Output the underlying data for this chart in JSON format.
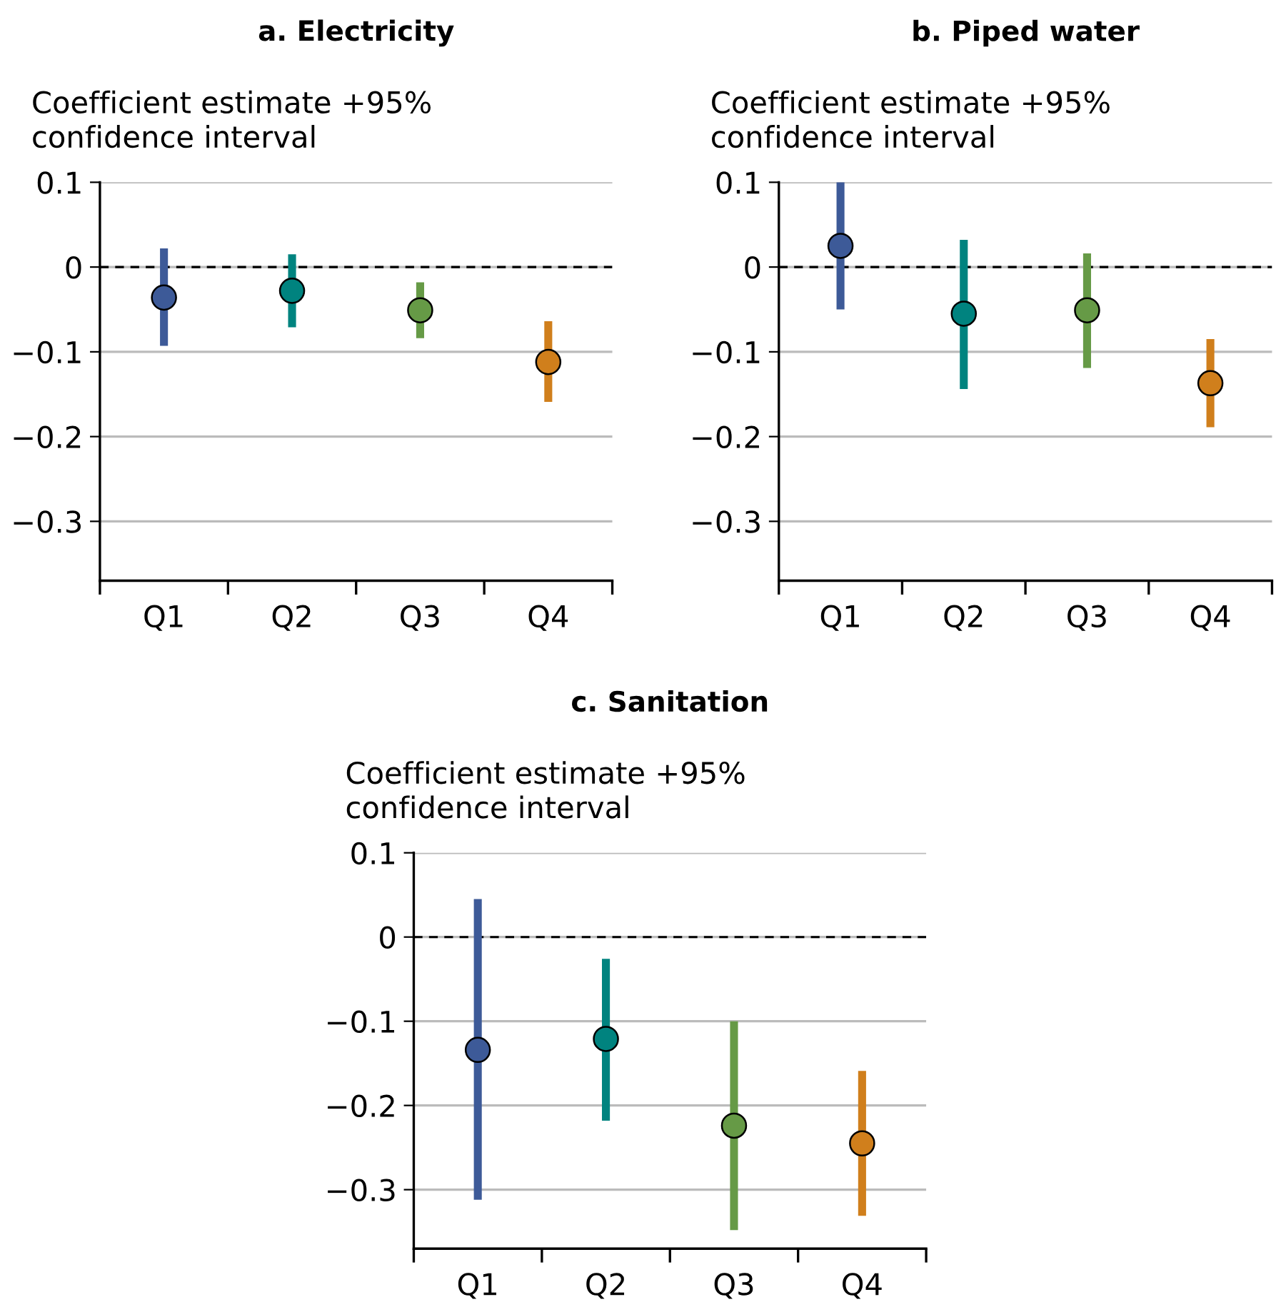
{
  "chart_data": [
    {
      "type": "scatter",
      "title": "a. Electricity",
      "ylabel": "Coefficient estimate +95%\nconfidence interval",
      "categories": [
        "Q1",
        "Q2",
        "Q3",
        "Q4"
      ],
      "values": [
        -0.036,
        -0.028,
        -0.051,
        -0.112
      ],
      "errors": [
        [
          -0.093,
          0.022
        ],
        [
          -0.071,
          0.015
        ],
        [
          -0.084,
          -0.018
        ],
        [
          -0.159,
          -0.064
        ]
      ],
      "colors": [
        "#3d5a98",
        "#00837f",
        "#669a46",
        "#d07f1c"
      ],
      "marker": "circle",
      "ylim": [
        -0.37,
        0.1
      ],
      "yticks": [
        {
          "value": -0.3,
          "label": "−0.3"
        },
        {
          "value": -0.2,
          "label": "−0.2"
        },
        {
          "value": -0.1,
          "label": "−0.1"
        },
        0,
        0.1
      ],
      "grid": "y",
      "ref_lines": [
        {
          "axis": "y",
          "value": 0,
          "color": "#000000",
          "line_style": "dashed"
        }
      ]
    },
    {
      "type": "scatter",
      "title": "b. Piped water",
      "ylabel": "Coefficient estimate +95%\nconfidence interval",
      "categories": [
        "Q1",
        "Q2",
        "Q3",
        "Q4"
      ],
      "values": [
        0.025,
        -0.055,
        -0.051,
        -0.137
      ],
      "errors": [
        [
          -0.05,
          0.1
        ],
        [
          -0.144,
          0.032
        ],
        [
          -0.119,
          0.016
        ],
        [
          -0.189,
          -0.085
        ]
      ],
      "colors": [
        "#3d5a98",
        "#00837f",
        "#669a46",
        "#d07f1c"
      ],
      "marker": "circle",
      "ylim": [
        -0.37,
        0.1
      ],
      "yticks": [
        {
          "value": -0.3,
          "label": "−0.3"
        },
        {
          "value": -0.2,
          "label": "−0.2"
        },
        {
          "value": -0.1,
          "label": "−0.1"
        },
        0,
        0.1
      ],
      "grid": "y",
      "ref_lines": [
        {
          "axis": "y",
          "value": 0,
          "color": "#000000",
          "line_style": "dashed"
        }
      ]
    },
    {
      "type": "scatter",
      "title": "c. Sanitation",
      "ylabel": "Coefficient estimate +95%\nconfidence interval",
      "categories": [
        "Q1",
        "Q2",
        "Q3",
        "Q4"
      ],
      "values": [
        -0.134,
        -0.121,
        -0.224,
        -0.245
      ],
      "errors": [
        [
          -0.312,
          0.045
        ],
        [
          -0.218,
          -0.026
        ],
        [
          -0.348,
          -0.1
        ],
        [
          -0.331,
          -0.159
        ]
      ],
      "colors": [
        "#3d5a98",
        "#00837f",
        "#669a46",
        "#d07f1c"
      ],
      "marker": "circle",
      "ylim": [
        -0.37,
        0.1
      ],
      "yticks": [
        {
          "value": -0.3,
          "label": "−0.3"
        },
        {
          "value": -0.2,
          "label": "−0.2"
        },
        {
          "value": -0.1,
          "label": "−0.1"
        },
        0,
        0.1
      ],
      "grid": "y",
      "ref_lines": [
        {
          "axis": "y",
          "value": 0,
          "color": "#000000",
          "line_style": "dashed"
        }
      ]
    }
  ]
}
